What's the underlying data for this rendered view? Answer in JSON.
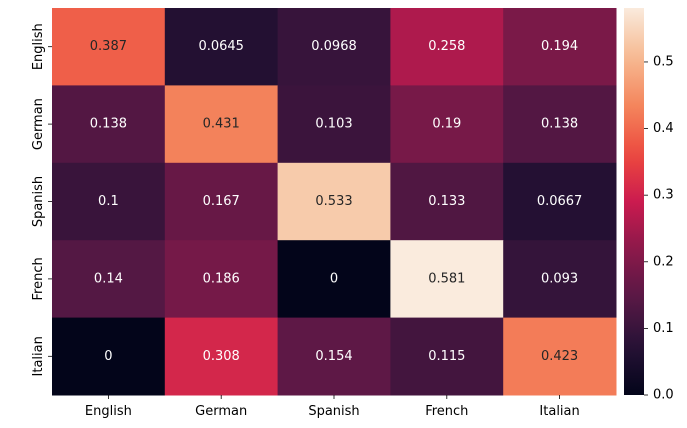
{
  "chart_data": {
    "type": "heatmap",
    "title": "",
    "xlabel": "",
    "ylabel": "",
    "x_categories": [
      "English",
      "German",
      "Spanish",
      "French",
      "Italian"
    ],
    "y_categories": [
      "English",
      "German",
      "Spanish",
      "French",
      "Italian"
    ],
    "values": [
      [
        0.387,
        0.0645,
        0.0968,
        0.258,
        0.194
      ],
      [
        0.138,
        0.431,
        0.103,
        0.19,
        0.138
      ],
      [
        0.1,
        0.167,
        0.533,
        0.133,
        0.0667
      ],
      [
        0.14,
        0.186,
        0,
        0.581,
        0.093
      ],
      [
        0,
        0.308,
        0.154,
        0.115,
        0.423
      ]
    ],
    "value_labels": [
      [
        "0.387",
        "0.0645",
        "0.0968",
        "0.258",
        "0.194"
      ],
      [
        "0.138",
        "0.431",
        "0.103",
        "0.19",
        "0.138"
      ],
      [
        "0.1",
        "0.167",
        "0.533",
        "0.133",
        "0.0667"
      ],
      [
        "0.14",
        "0.186",
        "0",
        "0.581",
        "0.093"
      ],
      [
        "0",
        "0.308",
        "0.154",
        "0.115",
        "0.423"
      ]
    ],
    "colormap": "rocket",
    "vmin": 0,
    "vmax": 0.581,
    "colorbar": {
      "ticks": [
        0.0,
        0.1,
        0.2,
        0.3,
        0.4,
        0.5
      ],
      "tick_labels": [
        "0.0",
        "0.1",
        "0.2",
        "0.3",
        "0.4",
        "0.5"
      ]
    },
    "grid": false
  }
}
